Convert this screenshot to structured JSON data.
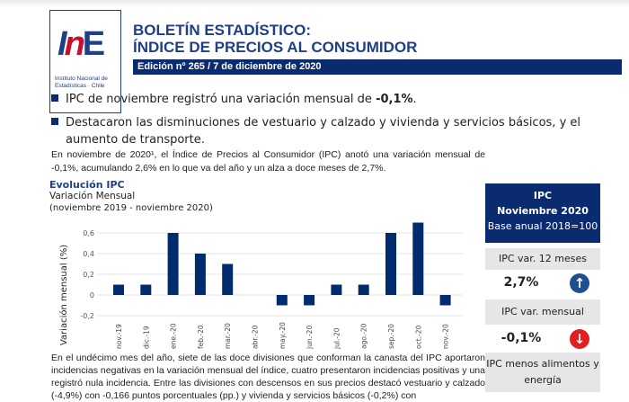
{
  "logo": {
    "text": "INE",
    "caption": "Instituto Nacional de Estadísticas · Chile"
  },
  "header": {
    "title_line1": "BOLETÍN ESTADÍSTICO:",
    "title_line2": "ÍNDICE DE PRECIOS AL CONSUMIDOR",
    "edition": "Edición nº 265 / 7 de diciembre de 2020"
  },
  "bullets": [
    {
      "text": "IPC de noviembre registró una variación mensual de ",
      "bold": "-0,1%",
      "suffix": "."
    },
    {
      "text": "Destacaron las disminuciones de vestuario y calzado y vivienda y servicios básicos, y el aumento de transporte."
    }
  ],
  "intro": "En noviembre de 2020¹, el Índice de Precios al Consumidor (IPC) anotó una variación mensual de -0,1%, acumulando 2,6% en lo que va del año y un alza a doce meses de 2,7%.",
  "chart_data": {
    "type": "bar",
    "title": "Evolución IPC",
    "subtitle": "Variación Mensual",
    "period": "(noviembre 2019 - noviembre 2020)",
    "ylabel": "Variación mensual (%)",
    "categories": [
      "nov.-19",
      "dic.-19",
      "ene.-20",
      "feb.-20",
      "mar.-20",
      "abr.-20",
      "may.-20",
      "jun.-20",
      "jul.-20",
      "ago.-20",
      "sep.-20",
      "oct.-20",
      "nov.-20"
    ],
    "values": [
      0.1,
      0.1,
      0.6,
      0.4,
      0.3,
      0,
      -0.1,
      -0.1,
      0.1,
      0.1,
      0.6,
      0.7,
      -0.1
    ],
    "yticks": [
      "0,6",
      "0,4",
      "0,2",
      "0",
      "-0,2"
    ],
    "ylim": [
      -0.25,
      0.75
    ],
    "grid": true,
    "color": "#002c6e"
  },
  "panel": {
    "title": "IPC",
    "period": "Noviembre 2020",
    "base": "Base anual 2018=100",
    "items": [
      {
        "label": "IPC var. 12 meses",
        "value": "2,7%",
        "direction": "up-arrow-icon",
        "color": "#1f4f8f"
      },
      {
        "label": "IPC var. mensual",
        "value": "-0,1%",
        "direction": "down-arrow-icon",
        "color": "#e02020"
      }
    ],
    "next_label": "IPC menos alimentos y energía"
  },
  "body": "En el undécimo mes del año, siete de las doce divisiones que conforman la canasta del IPC aportaron incidencias negativas en la variación mensual del índice, cuatro presentaron incidencias positivas y una registró nula incidencia. Entre las divisiones con descensos en sus precios destacó vestuario y calzado (-4,9%) con -0,166 puntos porcentuales (pp.) y vivienda y servicios básicos (-0,2%) con"
}
